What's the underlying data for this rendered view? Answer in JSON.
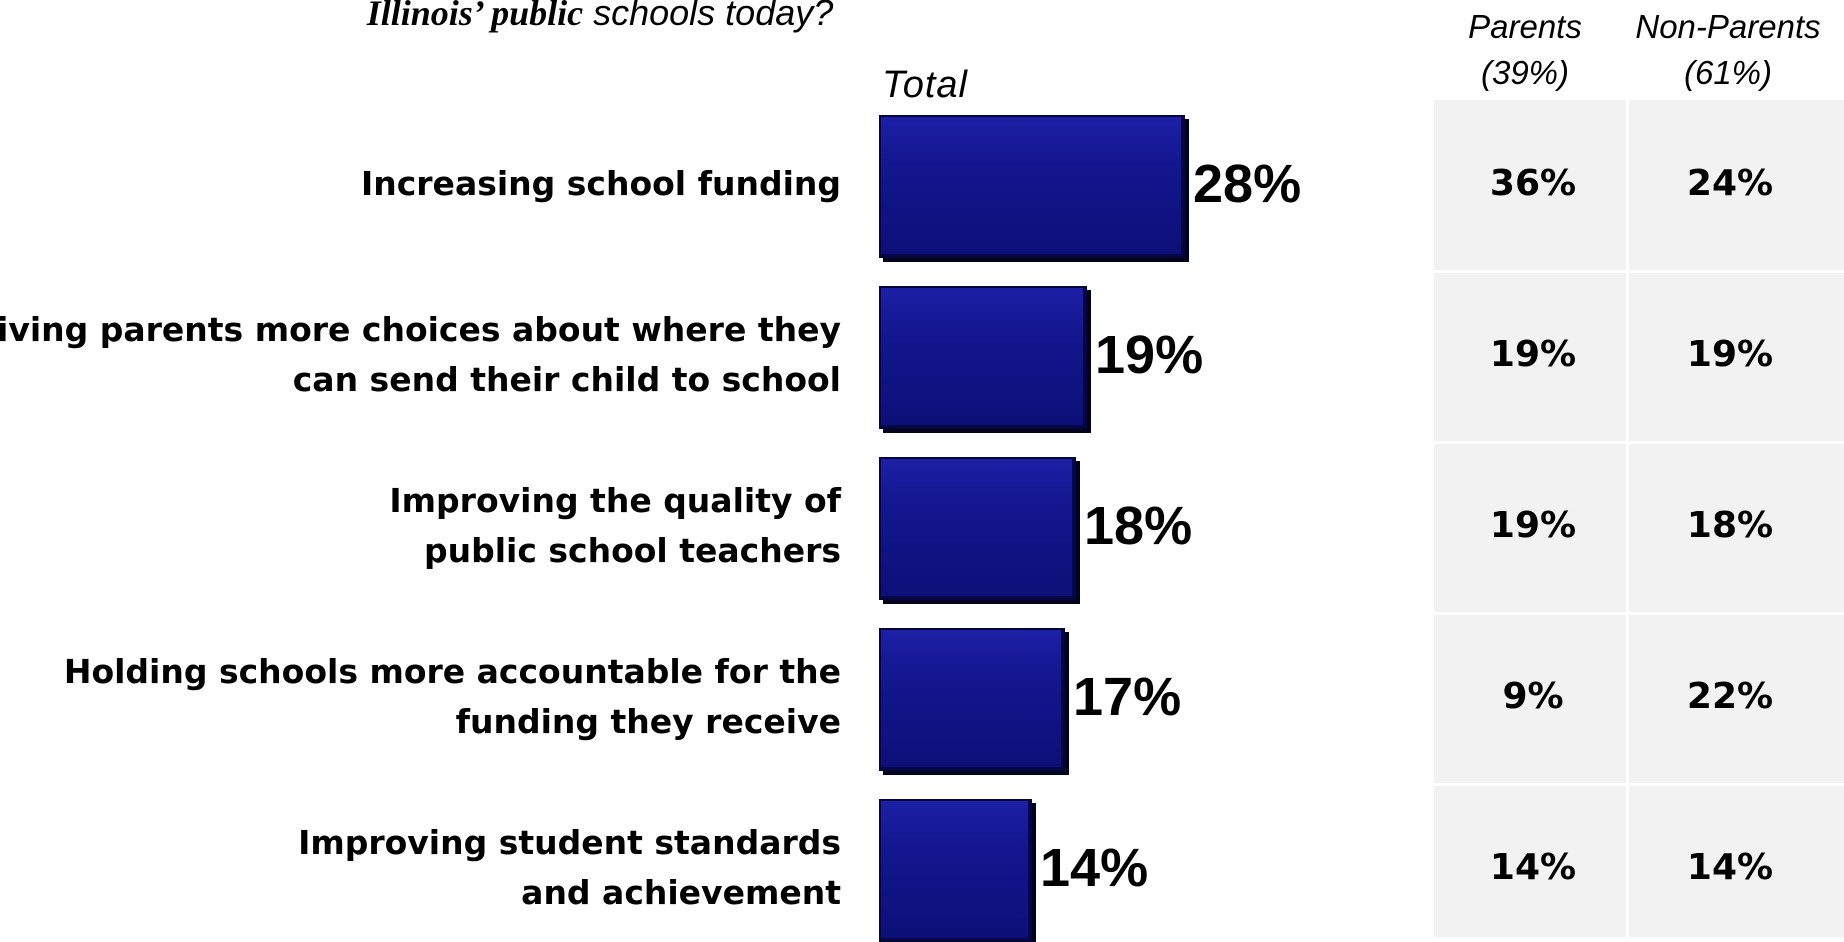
{
  "chart_data": {
    "type": "bar",
    "title": "Illinois’ public schools today?",
    "title_parts": [
      "Illinois’ public",
      " schools today?"
    ],
    "total_label": "Total",
    "categories": [
      "Increasing school funding",
      "Giving parents more choices about where they can send their child to school",
      "Improving the quality of public school teachers",
      "Holding schools more accountable for the funding they receive",
      "Improving student standards and achievement"
    ],
    "category_lines": [
      [
        "Increasing school funding"
      ],
      [
        "Giving parents more choices about where they",
        "can send their child to school"
      ],
      [
        "Improving the quality of",
        "public school teachers"
      ],
      [
        "Holding schools more accountable for the",
        "funding they receive"
      ],
      [
        "Improving student standards",
        "and achievement"
      ]
    ],
    "values": [
      28,
      19,
      18,
      17,
      14
    ],
    "value_labels": [
      "28%",
      "19%",
      "18%",
      "17%",
      "14%"
    ],
    "color": "#13168e",
    "table": {
      "columns": [
        {
          "name": "Parents",
          "sub": "(39%)"
        },
        {
          "name": "Non-Parents",
          "sub": "(61%)"
        }
      ],
      "rows": [
        [
          "36%",
          "24%"
        ],
        [
          "19%",
          "19%"
        ],
        [
          "19%",
          "18%"
        ],
        [
          "9%",
          "22%"
        ],
        [
          "14%",
          "14%"
        ]
      ]
    }
  }
}
